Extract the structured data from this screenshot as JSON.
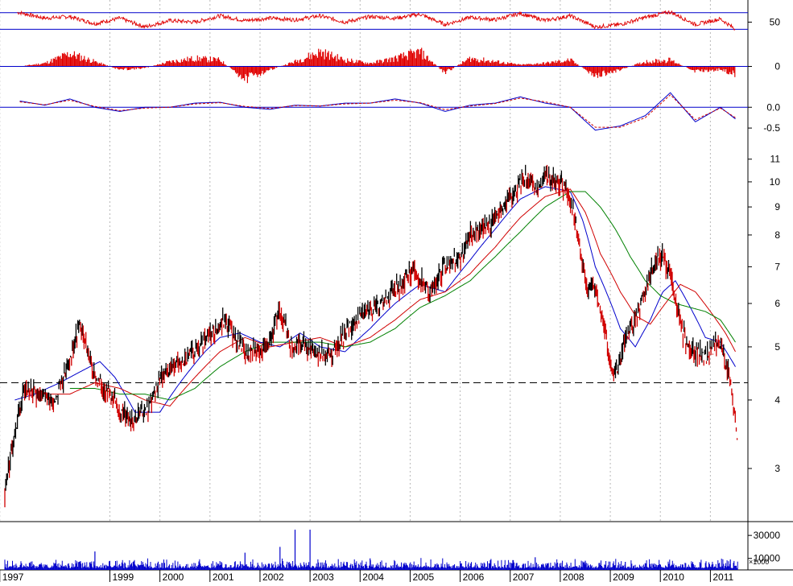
{
  "chart_data": [
    {
      "type": "line",
      "panel": "oscillator-top",
      "ylim": [
        22,
        78
      ],
      "y_ticks": [
        50
      ],
      "reference_lines": [
        62,
        41
      ],
      "series": [
        {
          "color": "#e00000",
          "x": [
            1997.0,
            1997.5,
            1998.0,
            1998.5,
            1999.0,
            1999.5,
            2000.0,
            2000.5,
            2001.0,
            2001.5,
            2002.0,
            2002.5,
            2003.0,
            2003.5,
            2004.0,
            2004.5,
            2005.0,
            2005.5,
            2006.0,
            2006.5,
            2007.0,
            2007.5,
            2008.0,
            2008.5,
            2009.0,
            2009.5,
            2010.0,
            2010.5,
            2011.0,
            2011.3
          ],
          "values": [
            62,
            55,
            57,
            48,
            55,
            44,
            52,
            50,
            58,
            52,
            55,
            53,
            58,
            50,
            57,
            55,
            60,
            47,
            56,
            53,
            61,
            52,
            58,
            44,
            47,
            56,
            63,
            47,
            54,
            41
          ]
        }
      ]
    },
    {
      "type": "bar",
      "panel": "histogram",
      "ylim": [
        -14,
        14
      ],
      "y_ticks": [
        0
      ],
      "reference_lines": [
        0
      ],
      "series": [
        {
          "color": "#e00000",
          "x": [
            1997.0,
            1997.5,
            1998.0,
            1998.5,
            1999.0,
            1999.5,
            2000.0,
            2000.5,
            2001.0,
            2001.5,
            2002.0,
            2002.5,
            2003.0,
            2003.5,
            2004.0,
            2004.5,
            2005.0,
            2005.5,
            2006.0,
            2006.5,
            2007.0,
            2007.5,
            2008.0,
            2008.5,
            2009.0,
            2009.5,
            2010.0,
            2010.5,
            2011.0,
            2011.3
          ],
          "values": [
            0,
            2,
            8,
            3,
            -2,
            -1,
            3,
            5,
            4,
            -8,
            -2,
            3,
            9,
            4,
            2,
            5,
            9,
            -4,
            5,
            3,
            1,
            2,
            4,
            -6,
            -2,
            3,
            4,
            -3,
            -2,
            -5
          ]
        }
      ]
    },
    {
      "type": "line",
      "panel": "oscillator-bottom",
      "ylim": [
        -0.75,
        0.45
      ],
      "y_ticks": [
        0.0,
        -0.5
      ],
      "y_tick_labels": [
        "0.0",
        "-0.5"
      ],
      "reference_lines": [
        0.0
      ],
      "series": [
        {
          "color": "#0000cc",
          "style": "solid",
          "x": [
            1997.0,
            1997.5,
            1998.0,
            1998.5,
            1999.0,
            1999.5,
            2000.0,
            2000.5,
            2001.0,
            2001.5,
            2002.0,
            2002.5,
            2003.0,
            2003.5,
            2004.0,
            2004.5,
            2005.0,
            2005.5,
            2006.0,
            2006.5,
            2007.0,
            2007.5,
            2008.0,
            2008.5,
            2009.0,
            2009.5,
            2010.0,
            2010.5,
            2011.0,
            2011.3
          ],
          "values": [
            0.15,
            0.05,
            0.2,
            0.0,
            -0.1,
            0.0,
            0.0,
            0.1,
            0.12,
            0.0,
            -0.05,
            0.05,
            0.03,
            0.1,
            0.1,
            0.2,
            0.1,
            -0.1,
            0.05,
            0.1,
            0.25,
            0.1,
            0.0,
            -0.55,
            -0.45,
            -0.2,
            0.35,
            -0.35,
            0.0,
            -0.28
          ]
        },
        {
          "color": "#cc0000",
          "style": "dashed",
          "x": [
            1997.0,
            1997.5,
            1998.0,
            1998.5,
            1999.0,
            1999.5,
            2000.0,
            2000.5,
            2001.0,
            2001.5,
            2002.0,
            2002.5,
            2003.0,
            2003.5,
            2004.0,
            2004.5,
            2005.0,
            2005.5,
            2006.0,
            2006.5,
            2007.0,
            2007.5,
            2008.0,
            2008.5,
            2009.0,
            2009.5,
            2010.0,
            2010.5,
            2011.0,
            2011.3
          ],
          "values": [
            0.13,
            0.06,
            0.17,
            0.02,
            -0.08,
            -0.02,
            0.0,
            0.08,
            0.11,
            0.02,
            -0.03,
            0.04,
            0.03,
            0.08,
            0.1,
            0.17,
            0.11,
            -0.06,
            0.03,
            0.09,
            0.22,
            0.13,
            0.0,
            -0.48,
            -0.48,
            -0.25,
            0.3,
            -0.3,
            -0.02,
            -0.25
          ]
        }
      ]
    },
    {
      "type": "line",
      "panel": "price",
      "scale": "log",
      "ylim": [
        2.4,
        12
      ],
      "y_ticks": [
        3,
        4,
        5,
        6,
        7,
        8,
        9,
        10,
        11
      ],
      "support_line": 4.3,
      "series": [
        {
          "color": "#c00000",
          "style": "price",
          "x": [
            1996.7,
            1996.9,
            1997.1,
            1997.4,
            1997.7,
            1998.0,
            1998.2,
            1998.5,
            1998.8,
            1999.0,
            1999.3,
            1999.6,
            1999.8,
            2000.0,
            2000.3,
            2000.6,
            2000.9,
            2001.1,
            2001.3,
            2001.5,
            2001.8,
            2002.0,
            2002.2,
            2002.4,
            2002.5,
            2002.7,
            2002.9,
            2003.2,
            2003.5,
            2003.8,
            2004.0,
            2004.3,
            2004.6,
            2004.9,
            2005.0,
            2005.2,
            2005.5,
            2005.8,
            2006.0,
            2006.3,
            2006.6,
            2006.9,
            2007.1,
            2007.3,
            2007.5,
            2007.7,
            2007.9,
            2008.0,
            2008.1,
            2008.3,
            2008.5,
            2008.7,
            2008.85,
            2009.0,
            2009.1,
            2009.3,
            2009.5,
            2009.7,
            2009.85,
            2010.0,
            2010.1,
            2010.3,
            2010.5,
            2010.7,
            2010.9,
            2011.0,
            2011.1,
            2011.2,
            2011.35
          ],
          "values": [
            2.7,
            3.5,
            4.2,
            4.1,
            4.0,
            4.7,
            5.5,
            4.4,
            4.1,
            3.8,
            3.7,
            3.9,
            4.4,
            4.6,
            4.7,
            5.0,
            5.4,
            5.6,
            5.2,
            4.9,
            4.9,
            5.1,
            5.9,
            5.1,
            5.0,
            5.1,
            4.9,
            4.8,
            5.3,
            5.7,
            5.8,
            6.1,
            6.5,
            7.0,
            6.6,
            6.3,
            7.0,
            7.3,
            8.0,
            8.2,
            8.8,
            9.6,
            10.2,
            9.6,
            10.2,
            10.0,
            9.8,
            9.3,
            8.4,
            6.5,
            6.4,
            5.3,
            4.4,
            4.7,
            5.1,
            5.6,
            6.4,
            7.2,
            7.3,
            6.8,
            6.0,
            5.1,
            4.9,
            4.8,
            5.0,
            5.1,
            4.7,
            4.3,
            3.3
          ]
        },
        {
          "color": "#0000cc",
          "style": "ma",
          "x": [
            1996.9,
            1997.3,
            1997.8,
            1998.2,
            1998.6,
            1998.9,
            1999.3,
            1999.8,
            2000.2,
            2000.7,
            2001.0,
            2001.4,
            2001.8,
            2002.2,
            2002.6,
            2003.0,
            2003.5,
            2004.0,
            2004.5,
            2005.0,
            2005.5,
            2006.0,
            2006.5,
            2007.0,
            2007.5,
            2008.0,
            2008.25,
            2008.5,
            2008.75,
            2009.0,
            2009.3,
            2009.6,
            2009.85,
            2010.1,
            2010.4,
            2010.7,
            2011.0,
            2011.3
          ],
          "values": [
            4.0,
            4.1,
            4.3,
            4.5,
            4.7,
            4.4,
            3.8,
            3.8,
            4.3,
            4.9,
            5.2,
            5.3,
            5.1,
            5.0,
            5.3,
            5.0,
            4.9,
            5.4,
            6.0,
            6.5,
            6.3,
            7.2,
            8.2,
            9.3,
            9.8,
            9.6,
            8.5,
            7.0,
            6.2,
            5.4,
            5.0,
            5.6,
            6.3,
            6.6,
            5.9,
            5.2,
            5.1,
            4.6
          ]
        },
        {
          "color": "#d00000",
          "style": "ma",
          "x": [
            1997.6,
            1998.0,
            1998.5,
            1999.0,
            1999.5,
            2000.0,
            2000.5,
            2001.0,
            2001.5,
            2002.0,
            2002.5,
            2003.0,
            2003.5,
            2004.0,
            2004.5,
            2005.0,
            2005.5,
            2006.0,
            2006.5,
            2007.0,
            2007.5,
            2008.0,
            2008.3,
            2008.6,
            2009.0,
            2009.3,
            2009.6,
            2009.9,
            2010.2,
            2010.5,
            2010.8,
            2011.1,
            2011.3
          ],
          "values": [
            4.1,
            4.1,
            4.3,
            4.2,
            4.0,
            3.9,
            4.4,
            4.9,
            5.2,
            5.0,
            5.1,
            5.2,
            5.0,
            5.2,
            5.6,
            6.1,
            6.3,
            6.8,
            7.6,
            8.6,
            9.4,
            9.7,
            8.8,
            7.4,
            6.3,
            5.7,
            5.5,
            6.0,
            6.5,
            6.3,
            5.8,
            5.3,
            4.9
          ]
        },
        {
          "color": "#008000",
          "style": "ma",
          "x": [
            1998.0,
            1998.5,
            1999.0,
            1999.5,
            2000.0,
            2000.5,
            2001.0,
            2001.5,
            2002.0,
            2002.5,
            2003.0,
            2003.5,
            2004.0,
            2004.5,
            2005.0,
            2005.5,
            2006.0,
            2006.5,
            2007.0,
            2007.5,
            2008.0,
            2008.3,
            2008.6,
            2008.9,
            2009.2,
            2009.5,
            2009.8,
            2010.1,
            2010.4,
            2010.7,
            2011.0,
            2011.3
          ],
          "values": [
            4.2,
            4.2,
            4.1,
            4.1,
            4.0,
            4.2,
            4.6,
            4.9,
            5.1,
            5.1,
            5.1,
            5.0,
            5.1,
            5.4,
            5.9,
            6.2,
            6.6,
            7.3,
            8.1,
            9.0,
            9.6,
            9.6,
            9.0,
            8.2,
            7.3,
            6.6,
            6.2,
            6.0,
            5.9,
            5.8,
            5.6,
            5.1
          ]
        }
      ]
    },
    {
      "type": "bar",
      "panel": "volume",
      "ylim": [
        0,
        42000
      ],
      "y_ticks": [
        30000,
        10000
      ],
      "y_tick_labels": [
        "30000",
        "10000"
      ],
      "unit_label": "×1000",
      "series": [
        {
          "color": "#0000cc",
          "x": [
            1998.5,
            2001.5,
            2002.2,
            2002.5,
            2002.8,
            2004.0,
            2007.3,
            2008.3,
            2009.1,
            2011.2
          ],
          "values": [
            16000,
            15000,
            20000,
            35000,
            35000,
            10000,
            11000,
            8000,
            7000,
            9000
          ]
        }
      ]
    },
    {
      "type": "axis",
      "panel": "time-axis",
      "categories": [
        "1997",
        "1999",
        "2000",
        "2001",
        "2002",
        "2003",
        "2004",
        "2005",
        "2006",
        "2007",
        "2008",
        "2009",
        "2010",
        "2011"
      ],
      "x": [
        1996.6,
        1998.8,
        1999.8,
        2000.8,
        2001.8,
        2002.8,
        2003.8,
        2004.8,
        2005.8,
        2006.8,
        2007.8,
        2008.8,
        2009.8,
        2010.8
      ]
    }
  ]
}
